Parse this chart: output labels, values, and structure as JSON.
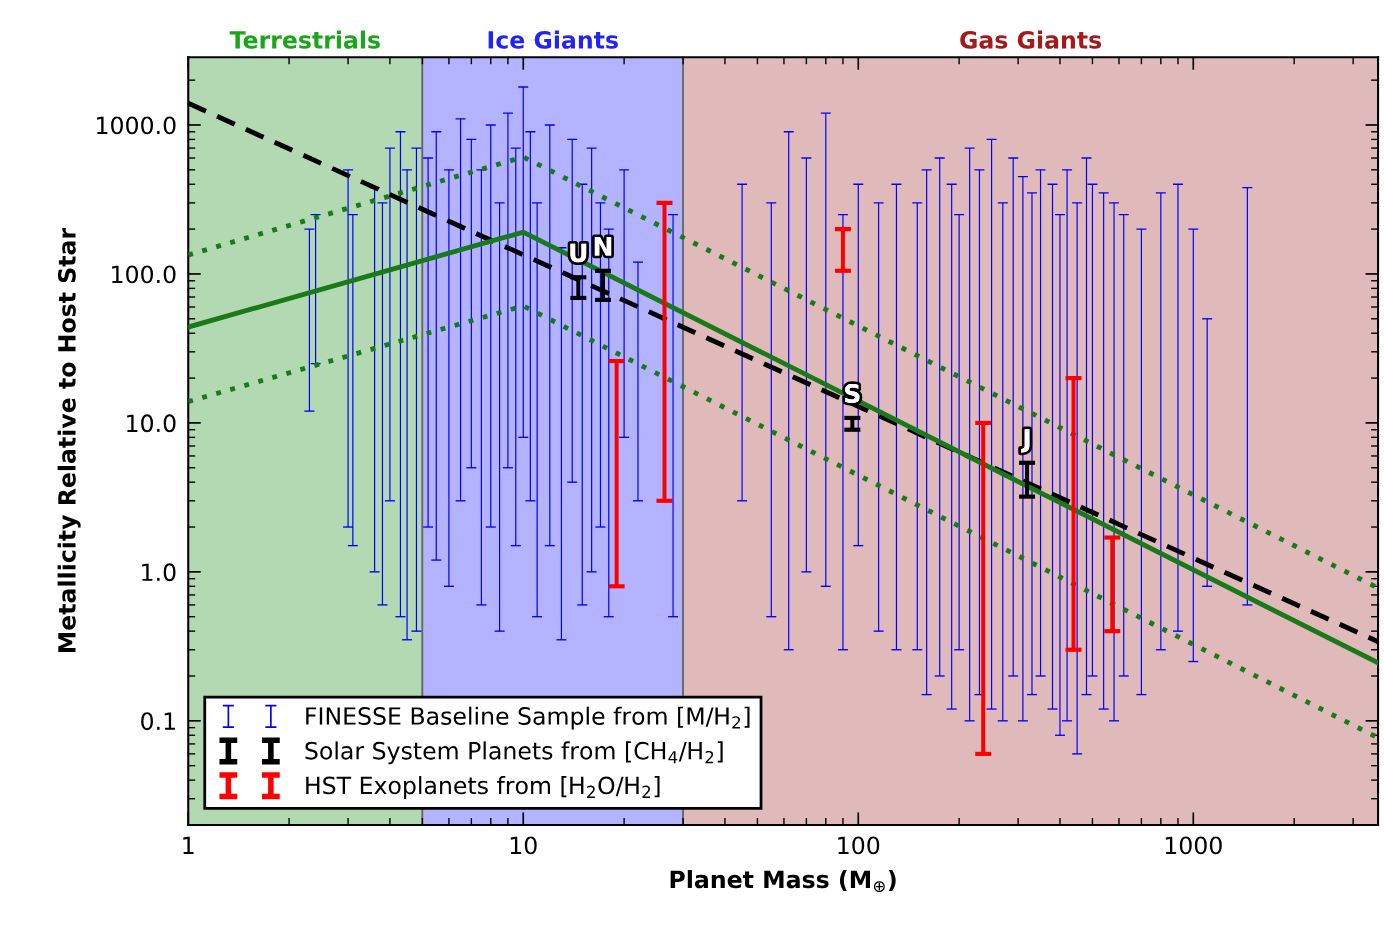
{
  "chart_data": {
    "type": "bar",
    "xlabel": "Planet Mass (M$_{⊕}$)",
    "ylabel": "Metallicity Relative to Host Star",
    "log": "xy",
    "xlim": [
      1,
      3560
    ],
    "ylim": [
      0.02,
      2850
    ],
    "xticks": [
      1,
      10,
      100,
      1000
    ],
    "yticks": [
      {
        "value": 1000,
        "label": "1000.0"
      },
      {
        "value": 100,
        "label": "100.0"
      },
      {
        "value": 10,
        "label": "10.0"
      },
      {
        "value": 1,
        "label": "1.0"
      },
      {
        "value": 0.1,
        "label": "0.1"
      }
    ],
    "grid": false,
    "legend": "bottom left",
    "bands": [
      {
        "axis": "x",
        "from": 1,
        "to": 5,
        "label": "Terrestrials",
        "color": "#b3d9b3"
      },
      {
        "axis": "x",
        "from": 5,
        "to": 30,
        "label": "Ice Giants",
        "color": "#b3b3ff"
      },
      {
        "axis": "x",
        "from": 30,
        "to": 3560,
        "label": "Gas Giants",
        "color": "#e0baba"
      }
    ],
    "series": [
      {
        "type": "line",
        "color": "#000000",
        "line_style": "dashed",
        "x": [
          1,
          3560
        ],
        "values": [
          1400,
          0.34
        ]
      },
      {
        "type": "line",
        "color": "#1a7a1a",
        "line_style": "solid",
        "x": [
          1,
          10,
          3560
        ],
        "values": [
          44,
          191,
          0.245
        ]
      },
      {
        "type": "line",
        "color": "#1a7a1a",
        "line_style": "dotted",
        "x": [
          1,
          10,
          3560
        ],
        "values": [
          134,
          610,
          0.78
        ]
      },
      {
        "type": "line",
        "color": "#1a7a1a",
        "line_style": "dotted",
        "x": [
          1,
          10,
          3560
        ],
        "values": [
          13.9,
          61,
          0.077
        ]
      },
      {
        "name": "FINESSE Baseline Sample from [M/H$_{2}$]",
        "color": "#0000ff",
        "x": [
          2.3,
          2.4,
          3.0,
          3.1,
          3.6,
          3.8,
          4.0,
          4.3,
          4.5,
          4.8,
          5.2,
          5.5,
          6.0,
          6.5,
          7.0,
          7.5,
          8.0,
          8.5,
          9.0,
          9.5,
          10,
          10.5,
          11,
          12,
          13,
          14,
          15,
          16,
          17,
          18,
          20,
          22,
          28,
          45,
          55,
          62,
          70,
          80,
          90,
          100,
          115,
          130,
          150,
          160,
          175,
          190,
          200,
          215,
          230,
          250,
          270,
          290,
          310,
          330,
          350,
          380,
          400,
          420,
          450,
          480,
          500,
          540,
          580,
          620,
          700,
          800,
          900,
          1000,
          1100,
          1450
        ],
        "base": [
          12,
          25,
          2,
          1.5,
          1.0,
          0.6,
          3,
          0.5,
          0.35,
          0.4,
          2,
          1.2,
          0.8,
          3,
          5,
          0.6,
          2,
          0.4,
          5,
          1.5,
          8,
          3,
          0.5,
          1.5,
          0.35,
          4,
          0.6,
          1,
          2,
          0.5,
          8,
          3,
          0.5,
          3,
          0.5,
          0.3,
          1,
          0.8,
          0.3,
          1.5,
          0.4,
          0.3,
          0.3,
          0.15,
          0.2,
          0.12,
          0.3,
          0.1,
          0.15,
          0.12,
          0.1,
          0.2,
          0.1,
          0.15,
          0.2,
          0.12,
          0.08,
          0.1,
          0.06,
          0.15,
          0.2,
          0.12,
          0.1,
          0.2,
          0.15,
          0.3,
          0.4,
          0.25,
          0.8,
          0.6
        ],
        "values": [
          188,
          225,
          498,
          248.5,
          379,
          299.4,
          697,
          899.5,
          499.65,
          699.6,
          598,
          898.8,
          499.2,
          1097,
          795,
          499.4,
          998,
          299.6,
          1195,
          698.5,
          1792,
          897,
          299.5,
          998.5,
          149.65,
          796,
          399.4,
          699,
          298,
          199.5,
          492,
          117,
          249.5,
          397,
          299.5,
          899.7,
          599,
          1199.2,
          249.7,
          398.5,
          299.6,
          399.7,
          299.7,
          499.85,
          599.8,
          399.88,
          249.7,
          699.9,
          499.85,
          799.88,
          299.9,
          599.8,
          449.9,
          349.85,
          499.8,
          399.88,
          249.92,
          499.9,
          299.94,
          599.85,
          399.8,
          349.88,
          299.9,
          249.8,
          199.85,
          349.7,
          399.6,
          199.75,
          49.2,
          379.4
        ]
      },
      {
        "name": "Solar System Planets from [CH$_{4}$/H$_{2}$]",
        "color": "#000000",
        "x": [
          14.6,
          17.3,
          96,
          319
        ],
        "base": [
          69,
          67,
          9,
          3.2
        ],
        "values": [
          26,
          38,
          1.8,
          2.2
        ]
      },
      {
        "name": "HST Exoplanets from [H$_{2}$O/H$_{2}$]",
        "color": "#ff0000",
        "x": [
          19,
          26.4,
          90,
          236,
          439,
          573
        ],
        "base": [
          0.8,
          3,
          105,
          0.06,
          0.3,
          0.4
        ],
        "values": [
          25.2,
          297,
          95,
          9.94,
          19.7,
          1.3
        ]
      }
    ],
    "annotations": [
      {
        "text": "U",
        "x": 14.6,
        "y": 95
      },
      {
        "text": "N",
        "x": 17.3,
        "y": 105
      },
      {
        "text": "S",
        "x": 96,
        "y": 10.8
      },
      {
        "text": "J",
        "x": 319,
        "y": 5.4
      }
    ]
  }
}
